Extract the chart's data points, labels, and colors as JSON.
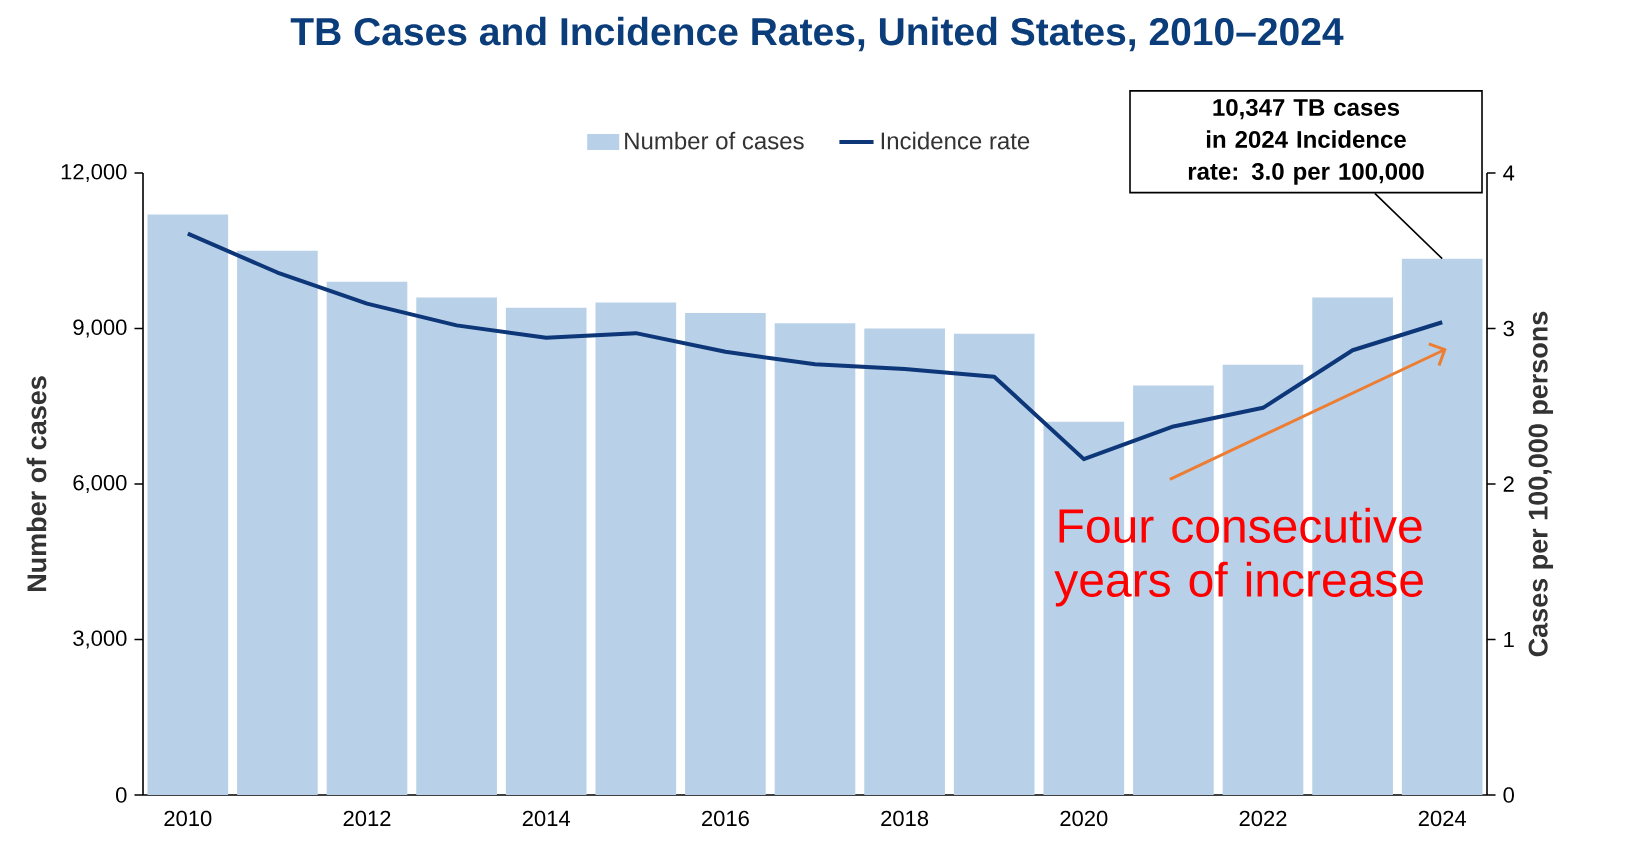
{
  "chart_data": {
    "type": "bar",
    "title": "TB Cases and Incidence Rates, United States, 2010–2024",
    "categories": [
      "2010",
      null,
      "2012",
      null,
      "2014",
      null,
      "2016",
      null,
      "2018",
      null,
      "2020",
      null,
      "2022",
      null,
      "2024"
    ],
    "series": [
      {
        "name": "Number of cases",
        "color": "#b8d0e8",
        "values": [
          11200,
          10500,
          9900,
          9600,
          9400,
          9500,
          9300,
          9100,
          9000,
          8900,
          7200,
          7900,
          8300,
          9600,
          10347
        ]
      },
      {
        "name": "Incidence rate",
        "type": "line",
        "axis": "y2",
        "color": "#0d3778",
        "values": [
          3.61,
          3.36,
          3.16,
          3.02,
          2.94,
          2.97,
          2.85,
          2.77,
          2.74,
          2.69,
          2.16,
          2.37,
          2.49,
          2.86,
          3.04
        ]
      }
    ],
    "ylabel": "Number of cases",
    "y2label": "Cases per 100,000 persons",
    "ylim": [
      0,
      12000
    ],
    "yticks": [
      0,
      {
        "value": 3000,
        "label": "3,000"
      },
      {
        "value": 6000,
        "label": "6,000"
      },
      {
        "value": 9000,
        "label": "9,000"
      },
      {
        "value": 12000,
        "label": "12,000"
      }
    ],
    "y2lim": [
      0,
      4
    ],
    "y2ticks": [
      0,
      1,
      2,
      3,
      4
    ],
    "legend": "top",
    "annotations": [
      {
        "text": "10,347 TB cases in 2024 Incidence rate: 3.0 per 100,000",
        "x": "2024",
        "y": 10347
      },
      "Four consecutive years of increase"
    ]
  }
}
